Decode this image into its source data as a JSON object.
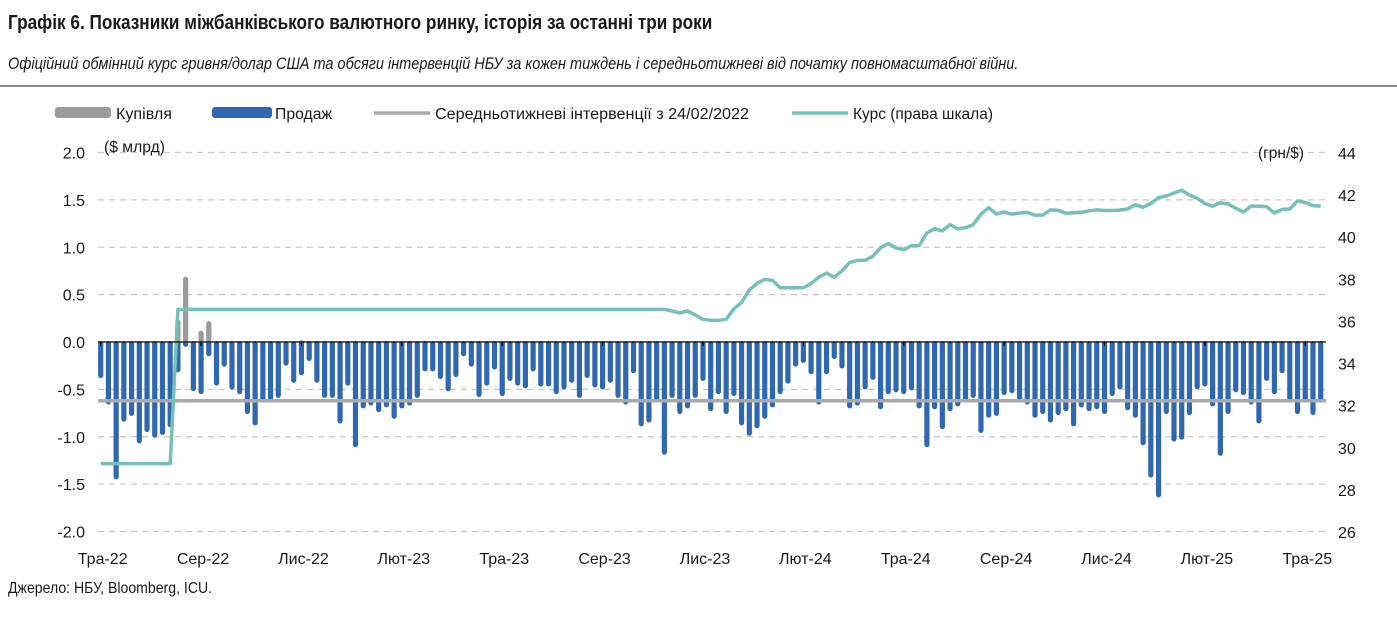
{
  "title": "Графік 6. Показники міжбанківського валютного ринку, історія за останні три роки",
  "subtitle": "Офіційний обмінний курс гривня/долар США та обсяги інтервенцій НБУ за кожен тиждень і середньотижневі від початку повномасштабної війни.",
  "source": "Джерело: НБУ, Bloomberg, ICU.",
  "colors": {
    "purchase": "#9b9b9b",
    "sale": "#2f67b0",
    "average": "#a9a9a9",
    "rate": "#76c0b8",
    "grid": "#c8c8c8",
    "zero": "#000000"
  },
  "chart_data": {
    "type": "bar+line",
    "legend": [
      "Купівля",
      "Продаж",
      "Середньотижневі інтервенції з 24/02/2022",
      "Курс (права шкала)"
    ],
    "legend_placement": "top",
    "ylabel_left": "($ млрд)",
    "ylabel_right": "(грн/$)",
    "ylim_left": [
      -2.0,
      2.0
    ],
    "ylim_right": [
      26,
      44
    ],
    "y_ticks_left": [
      "2.0",
      "1.5",
      "1.0",
      "0.5",
      "0.0",
      "-0.5",
      "-1.0",
      "-1.5",
      "-2.0"
    ],
    "y_ticks_right": [
      "44",
      "42",
      "40",
      "38",
      "36",
      "34",
      "32",
      "30",
      "28",
      "26"
    ],
    "grid": "horizontal dashed",
    "x_tick_labels": [
      "Тра-22",
      "Сер-22",
      "Лис-22",
      "Лют-23",
      "Тра-23",
      "Сер-23",
      "Лис-23",
      "Лют-24",
      "Тра-24",
      "Сер-24",
      "Лис-24",
      "Лют-25",
      "Тра-25"
    ],
    "x_tick_dates": [
      "2022-05-06",
      "2022-08-05",
      "2022-11-04",
      "2023-02-03",
      "2023-05-05",
      "2023-08-04",
      "2023-11-03",
      "2024-02-02",
      "2024-05-03",
      "2024-08-02",
      "2024-11-01",
      "2025-01-31",
      "2025-05-02"
    ],
    "dates": [
      "2022-05-06",
      "2022-05-13",
      "2022-05-20",
      "2022-05-27",
      "2022-06-03",
      "2022-06-10",
      "2022-06-17",
      "2022-06-24",
      "2022-07-01",
      "2022-07-08",
      "2022-07-15",
      "2022-07-22",
      "2022-07-29",
      "2022-08-05",
      "2022-08-12",
      "2022-08-19",
      "2022-08-26",
      "2022-09-02",
      "2022-09-09",
      "2022-09-16",
      "2022-09-23",
      "2022-09-30",
      "2022-10-07",
      "2022-10-14",
      "2022-10-21",
      "2022-10-28",
      "2022-11-04",
      "2022-11-11",
      "2022-11-18",
      "2022-11-25",
      "2022-12-02",
      "2022-12-09",
      "2022-12-16",
      "2022-12-23",
      "2022-12-30",
      "2023-01-06",
      "2023-01-13",
      "2023-01-20",
      "2023-01-27",
      "2023-02-03",
      "2023-02-10",
      "2023-02-17",
      "2023-02-24",
      "2023-03-03",
      "2023-03-10",
      "2023-03-17",
      "2023-03-24",
      "2023-03-31",
      "2023-04-07",
      "2023-04-14",
      "2023-04-21",
      "2023-04-28",
      "2023-05-05",
      "2023-05-12",
      "2023-05-19",
      "2023-05-26",
      "2023-06-02",
      "2023-06-09",
      "2023-06-16",
      "2023-06-23",
      "2023-06-30",
      "2023-07-07",
      "2023-07-14",
      "2023-07-21",
      "2023-07-28",
      "2023-08-04",
      "2023-08-11",
      "2023-08-18",
      "2023-08-25",
      "2023-09-01",
      "2023-09-08",
      "2023-09-15",
      "2023-09-22",
      "2023-09-29",
      "2023-10-06",
      "2023-10-13",
      "2023-10-20",
      "2023-10-27",
      "2023-11-03",
      "2023-11-10",
      "2023-11-17",
      "2023-11-24",
      "2023-12-01",
      "2023-12-08",
      "2023-12-15",
      "2023-12-22",
      "2023-12-29",
      "2024-01-05",
      "2024-01-12",
      "2024-01-19",
      "2024-01-26",
      "2024-02-02",
      "2024-02-09",
      "2024-02-16",
      "2024-02-23",
      "2024-03-01",
      "2024-03-08",
      "2024-03-15",
      "2024-03-22",
      "2024-03-29",
      "2024-04-05",
      "2024-04-12",
      "2024-04-19",
      "2024-04-26",
      "2024-05-03",
      "2024-05-10",
      "2024-05-17",
      "2024-05-24",
      "2024-05-31",
      "2024-06-07",
      "2024-06-14",
      "2024-06-21",
      "2024-06-28",
      "2024-07-05",
      "2024-07-12",
      "2024-07-19",
      "2024-07-26",
      "2024-08-02",
      "2024-08-09",
      "2024-08-16",
      "2024-08-23",
      "2024-08-30",
      "2024-09-06",
      "2024-09-13",
      "2024-09-20",
      "2024-09-27",
      "2024-10-04",
      "2024-10-11",
      "2024-10-18",
      "2024-10-25",
      "2024-11-01",
      "2024-11-08",
      "2024-11-15",
      "2024-11-22",
      "2024-11-29",
      "2024-12-06",
      "2024-12-13",
      "2024-12-20",
      "2024-12-27",
      "2025-01-03",
      "2025-01-10",
      "2025-01-17",
      "2025-01-24",
      "2025-01-31",
      "2025-02-07",
      "2025-02-14",
      "2025-02-21",
      "2025-02-28",
      "2025-03-07",
      "2025-03-14",
      "2025-03-21",
      "2025-03-28",
      "2025-04-04",
      "2025-04-11",
      "2025-04-18",
      "2025-04-25",
      "2025-05-02",
      "2025-05-09",
      "2025-05-16"
    ],
    "series": [
      {
        "name": "Купівля",
        "type": "bar",
        "axis": "left",
        "values": [
          0,
          0,
          0,
          0,
          0,
          0,
          0,
          0,
          0,
          0,
          0.24,
          0.69,
          0,
          0.12,
          0.22,
          0,
          0,
          0,
          0,
          0,
          0,
          0,
          0,
          0,
          0,
          0,
          0.02,
          0,
          0,
          0,
          0,
          0,
          0,
          0,
          0,
          0,
          0,
          0,
          0,
          0,
          0,
          0,
          0,
          0,
          0,
          0,
          0,
          0,
          0,
          0,
          0,
          0,
          0,
          0,
          0,
          0,
          0,
          0,
          0,
          0,
          0,
          0,
          0,
          0,
          0,
          0,
          0,
          0,
          0,
          0,
          0,
          0,
          0,
          0,
          0,
          0,
          0,
          0,
          0,
          0,
          0,
          0,
          0,
          0,
          0,
          0,
          0,
          0,
          0,
          0,
          0,
          0,
          0,
          0,
          0,
          0,
          0,
          0,
          0,
          0,
          0,
          0,
          0,
          0,
          0,
          0,
          0,
          0,
          0,
          0,
          0,
          0,
          0,
          0,
          0,
          0,
          0,
          0,
          0,
          0,
          0,
          0,
          0,
          0,
          0,
          0,
          0,
          0,
          0,
          0,
          0,
          0,
          0,
          0,
          0,
          0,
          0,
          0,
          0,
          0,
          0,
          0,
          0,
          0,
          0,
          0,
          0,
          0,
          0,
          0,
          0,
          0,
          0,
          0,
          0,
          0,
          0,
          0,
          0
        ]
      },
      {
        "name": "Продаж",
        "type": "bar",
        "axis": "left",
        "values": [
          -0.38,
          -0.66,
          -1.45,
          -0.84,
          -0.78,
          -1.07,
          -0.95,
          -1.01,
          -0.98,
          -0.9,
          -0.32,
          -0.05,
          -0.52,
          -0.55,
          -0.15,
          -0.46,
          -0.26,
          -0.5,
          -0.55,
          -0.76,
          -0.88,
          -0.64,
          -0.64,
          -0.59,
          -0.25,
          -0.43,
          -0.35,
          -0.2,
          -0.43,
          -0.59,
          -0.59,
          -0.86,
          -0.46,
          -1.11,
          -0.7,
          -0.67,
          -0.74,
          -0.69,
          -0.81,
          -0.7,
          -0.67,
          -0.59,
          -0.31,
          -0.31,
          -0.39,
          -0.52,
          -0.37,
          -0.15,
          -0.26,
          -0.58,
          -0.46,
          -0.29,
          -0.57,
          -0.41,
          -0.46,
          -0.49,
          -0.31,
          -0.47,
          -0.47,
          -0.55,
          -0.5,
          -0.43,
          -0.59,
          -0.38,
          -0.48,
          -0.5,
          -0.43,
          -0.59,
          -0.66,
          -0.33,
          -0.89,
          -0.85,
          -0.64,
          -1.19,
          -0.59,
          -0.76,
          -0.7,
          -0.59,
          -0.41,
          -0.73,
          -0.55,
          -0.76,
          -0.57,
          -0.88,
          -0.99,
          -0.91,
          -0.81,
          -0.69,
          -0.55,
          -0.44,
          -0.26,
          -0.22,
          -0.34,
          -0.66,
          -0.34,
          -0.18,
          -0.28,
          -0.7,
          -0.67,
          -0.5,
          -0.4,
          -0.71,
          -0.55,
          -0.53,
          -0.55,
          -0.51,
          -0.7,
          -1.11,
          -0.71,
          -0.92,
          -0.73,
          -0.68,
          -0.64,
          -0.59,
          -0.96,
          -0.8,
          -0.78,
          -0.56,
          -0.54,
          -0.64,
          -0.66,
          -0.8,
          -0.76,
          -0.85,
          -0.77,
          -0.73,
          -0.89,
          -0.69,
          -0.73,
          -0.71,
          -0.76,
          -0.57,
          -0.5,
          -0.72,
          -0.8,
          -1.09,
          -1.43,
          -1.64,
          -0.76,
          -1.05,
          -1.03,
          -0.77,
          -0.5,
          -0.47,
          -0.68,
          -1.2,
          -0.76,
          -0.53,
          -0.56,
          -0.66,
          -0.86,
          -0.41,
          -0.55,
          -0.33,
          -0.63,
          -0.76,
          -0.64,
          -0.77,
          -0.64
        ]
      },
      {
        "name": "Середньотижневі інтервенції з 24/02/2022",
        "type": "line",
        "axis": "left",
        "value": -0.62
      },
      {
        "name": "Курс (права шкала)",
        "type": "line",
        "axis": "right",
        "values": [
          29.25,
          29.25,
          29.25,
          29.25,
          29.25,
          29.25,
          29.25,
          29.25,
          29.25,
          29.25,
          36.57,
          36.57,
          36.57,
          36.57,
          36.57,
          36.57,
          36.57,
          36.57,
          36.57,
          36.57,
          36.57,
          36.57,
          36.57,
          36.57,
          36.57,
          36.57,
          36.57,
          36.57,
          36.57,
          36.57,
          36.57,
          36.57,
          36.57,
          36.57,
          36.57,
          36.57,
          36.57,
          36.57,
          36.57,
          36.57,
          36.57,
          36.57,
          36.57,
          36.57,
          36.57,
          36.57,
          36.57,
          36.57,
          36.57,
          36.57,
          36.57,
          36.57,
          36.57,
          36.57,
          36.57,
          36.57,
          36.57,
          36.57,
          36.57,
          36.57,
          36.57,
          36.57,
          36.57,
          36.57,
          36.57,
          36.57,
          36.57,
          36.57,
          36.57,
          36.57,
          36.57,
          36.57,
          36.57,
          36.57,
          36.5,
          36.4,
          36.5,
          36.3,
          36.1,
          36.05,
          36.05,
          36.1,
          36.6,
          36.9,
          37.5,
          37.8,
          38.0,
          37.95,
          37.6,
          37.6,
          37.6,
          37.6,
          37.8,
          38.1,
          38.3,
          38.1,
          38.4,
          38.8,
          38.9,
          38.9,
          39.1,
          39.5,
          39.7,
          39.5,
          39.4,
          39.6,
          39.6,
          40.2,
          40.4,
          40.3,
          40.6,
          40.4,
          40.45,
          40.6,
          41.1,
          41.4,
          41.1,
          41.2,
          41.1,
          41.15,
          41.18,
          41.05,
          41.05,
          41.3,
          41.28,
          41.14,
          41.16,
          41.18,
          41.25,
          41.3,
          41.27,
          41.27,
          41.29,
          41.35,
          41.55,
          41.42,
          41.6,
          41.88,
          41.96,
          42.1,
          42.24,
          42.0,
          41.85,
          41.6,
          41.47,
          41.64,
          41.58,
          41.38,
          41.2,
          41.48,
          41.48,
          41.45,
          41.15,
          41.32,
          41.34,
          41.72,
          41.65,
          41.5,
          41.48
        ]
      }
    ]
  }
}
